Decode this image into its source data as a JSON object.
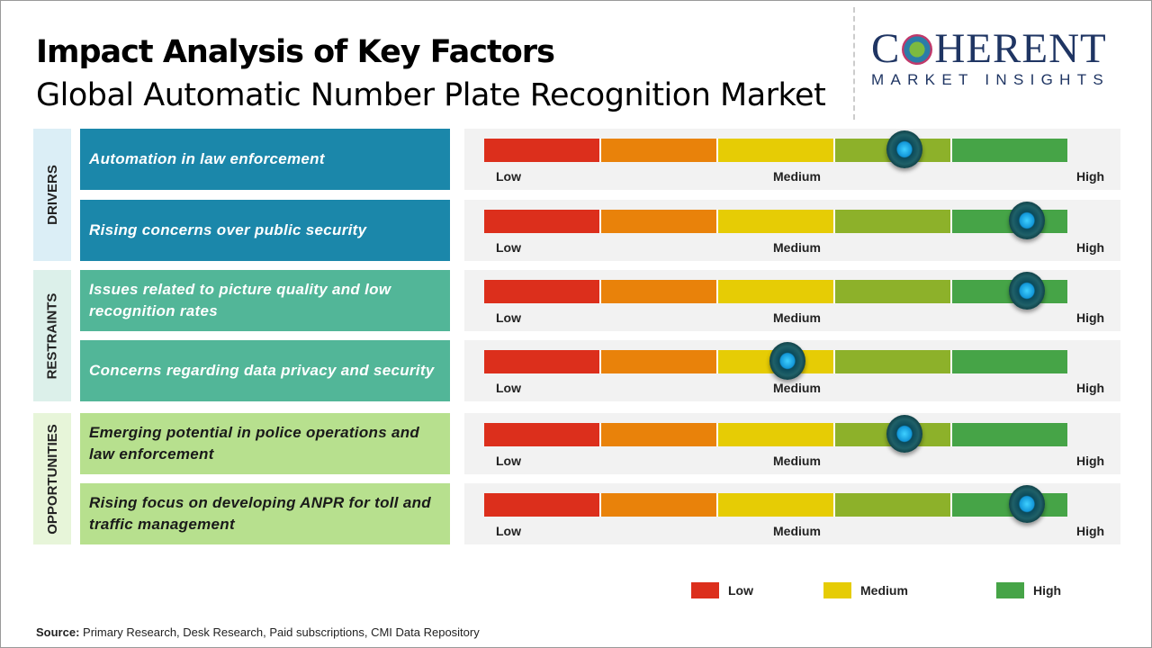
{
  "title": "Impact Analysis of Key Factors",
  "subtitle": "Global Automatic Number Plate Recognition Market",
  "logo": {
    "main": "COHERENT",
    "sub": "MARKET INSIGHTS"
  },
  "colors": {
    "segments": [
      "#dc2f1c",
      "#e9820a",
      "#e6cc05",
      "#8db12a",
      "#46a447"
    ],
    "drivers_item": "#1b87aa",
    "drivers_cat": "#dbeef6",
    "restraints_item": "#52b698",
    "restraints_cat": "#dcf0ea",
    "opp_item": "#b7e08e",
    "opp_cat": "#e7f5d9"
  },
  "scale_labels": {
    "low": "Low",
    "medium": "Medium",
    "high": "High"
  },
  "chart_data": {
    "type": "table",
    "scale": [
      0,
      1
    ],
    "groups": [
      {
        "name": "DRIVERS",
        "factors": [
          {
            "label": "Automation in law enforcement",
            "impact": 0.72
          },
          {
            "label": "Rising concerns over public security",
            "impact": 0.93
          }
        ]
      },
      {
        "name": "RESTRAINTS",
        "factors": [
          {
            "label": "Issues related to picture quality and low recognition rates",
            "impact": 0.93
          },
          {
            "label": "Concerns regarding data privacy and security",
            "impact": 0.52
          }
        ]
      },
      {
        "name": "OPPORTUNITIES",
        "factors": [
          {
            "label": "Emerging potential in police operations and law enforcement",
            "impact": 0.72
          },
          {
            "label": "Rising focus on developing ANPR for toll and traffic management",
            "impact": 0.93
          }
        ]
      }
    ],
    "legend": [
      "Low",
      "Medium",
      "High"
    ]
  },
  "source": {
    "label": "Source:",
    "text": " Primary Research, Desk Research, Paid subscriptions, CMI Data Repository"
  }
}
